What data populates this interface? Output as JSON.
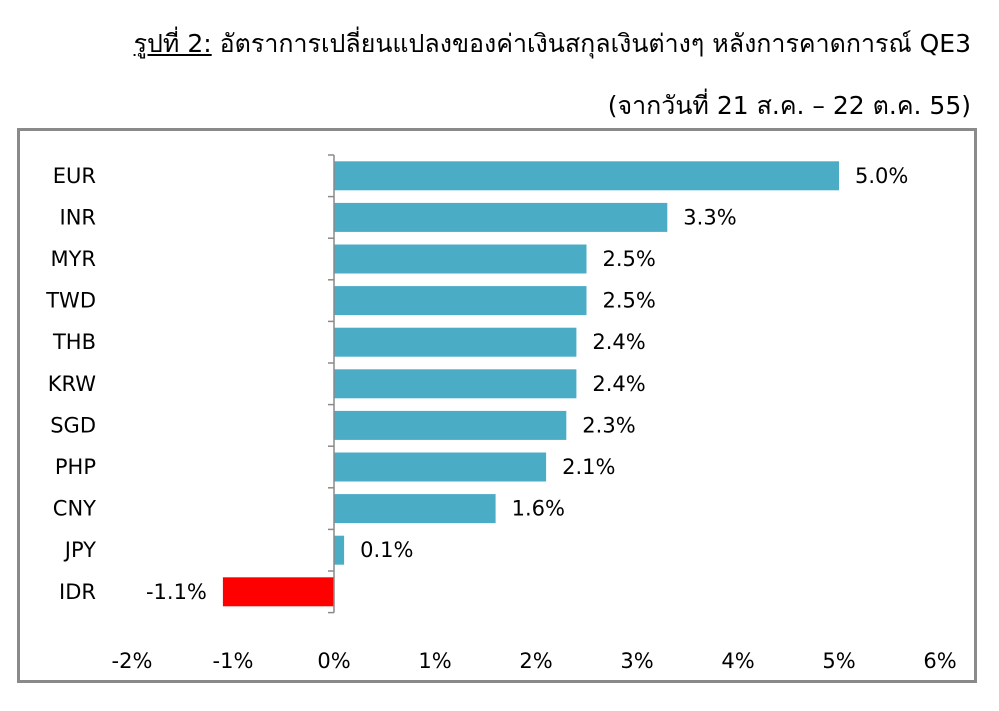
{
  "header": {
    "title_lead": "รูปที่ 2:",
    "title_main": "อัตราการเปลี่ยนแปลงของค่าเงินสกุลเงินต่างๆ หลังการคาดการณ์ QE3",
    "subtitle": "(จากวันที่ 21 ส.ค. – 22 ต.ค. 55)"
  },
  "colors": {
    "positive": "#4bacc6",
    "negative": "#ff0000",
    "axis": "#8a8a8a",
    "frame": "#8a8a8a"
  },
  "chart_data": {
    "type": "bar",
    "orientation": "horizontal",
    "categories": [
      "EUR",
      "INR",
      "MYR",
      "TWD",
      "THB",
      "KRW",
      "SGD",
      "PHP",
      "CNY",
      "JPY",
      "IDR"
    ],
    "values": [
      5.0,
      3.3,
      2.5,
      2.5,
      2.4,
      2.4,
      2.3,
      2.1,
      1.6,
      0.1,
      -1.1
    ],
    "value_labels": [
      "5.0%",
      "3.3%",
      "2.5%",
      "2.5%",
      "2.4%",
      "2.4%",
      "2.3%",
      "2.1%",
      "1.6%",
      "0.1%",
      "-1.1%"
    ],
    "xlim": [
      -2,
      6
    ],
    "xticks": [
      -2,
      -1,
      0,
      1,
      2,
      3,
      4,
      5,
      6
    ],
    "xtick_labels": [
      "-2%",
      "-1%",
      "0%",
      "1%",
      "2%",
      "3%",
      "4%",
      "5%",
      "6%"
    ],
    "grid": false,
    "legend": "none"
  }
}
